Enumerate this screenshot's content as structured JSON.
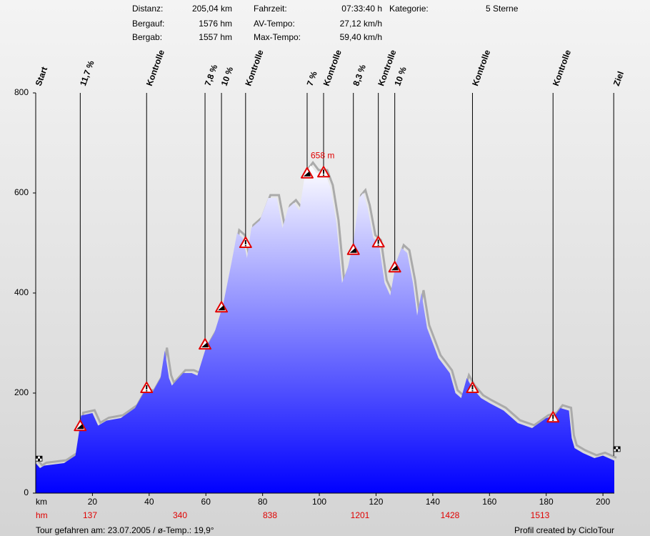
{
  "chart_data": {
    "type": "area",
    "stats": [
      {
        "label": "Distanz:",
        "value": "205,04 km"
      },
      {
        "label": "Bergauf:",
        "value": "1576 hm"
      },
      {
        "label": "Bergab:",
        "value": "1557 hm"
      },
      {
        "label": "Fahrzeit:",
        "value": "07:33:40 h"
      },
      {
        "label": "AV-Tempo:",
        "value": "27,12 km/h"
      },
      {
        "label": "Max-Tempo:",
        "value": "59,40 km/h"
      },
      {
        "label": "Kategorie:",
        "value": "5 Sterne"
      }
    ],
    "annotation": "658 m",
    "x_label": "km",
    "xlim": [
      0,
      204
    ],
    "xticks": [
      20,
      40,
      60,
      80,
      100,
      120,
      140,
      160,
      180,
      200
    ],
    "ylim": [
      0,
      800
    ],
    "yticks": [
      0,
      200,
      400,
      600,
      800
    ],
    "climb_label": "hm",
    "climb_values": [
      137,
      340,
      838,
      1201,
      1428,
      1513
    ],
    "series": [
      {
        "color": "#0000ff",
        "x": [
          0,
          1.5,
          3,
          10,
          14,
          15.5,
          16,
          20,
          22,
          25,
          30,
          35,
          38,
          41,
          44,
          45.5,
          47,
          48,
          52,
          55,
          57,
          60,
          63,
          66,
          69,
          71,
          73,
          74.5,
          76,
          79,
          82,
          85,
          87,
          89,
          91,
          93,
          95,
          97,
          99,
          102,
          104,
          106,
          108,
          110,
          112,
          114,
          115.5,
          117,
          119,
          121,
          123,
          125,
          127,
          129,
          131,
          133,
          134.5,
          136,
          138,
          140,
          142,
          144,
          146,
          148,
          150,
          152,
          154,
          157,
          160,
          165,
          170,
          175,
          180,
          183,
          185,
          188,
          189,
          190,
          193,
          197,
          200,
          204
        ],
        "values": [
          60,
          50,
          55,
          60,
          75,
          130,
          155,
          160,
          135,
          145,
          150,
          170,
          200,
          200,
          230,
          285,
          230,
          215,
          240,
          240,
          235,
          290,
          320,
          375,
          460,
          520,
          510,
          470,
          530,
          545,
          590,
          590,
          530,
          570,
          580,
          565,
          640,
          655,
          640,
          640,
          610,
          540,
          420,
          450,
          500,
          590,
          600,
          570,
          510,
          500,
          420,
          395,
          460,
          490,
          480,
          420,
          355,
          400,
          330,
          300,
          270,
          255,
          240,
          200,
          190,
          230,
          210,
          190,
          180,
          165,
          140,
          130,
          150,
          155,
          170,
          165,
          110,
          90,
          80,
          70,
          75,
          65
        ]
      }
    ],
    "markers": [
      {
        "label": "Start",
        "icon": "flag",
        "km": 0,
        "elevation": 64
      },
      {
        "label": "11,7 %",
        "icon": "climb",
        "km": 15.7,
        "elevation": 134
      },
      {
        "label": "Kontrolle",
        "icon": "warning",
        "km": 39.1,
        "elevation": 210
      },
      {
        "label": "7,8 %",
        "icon": "climb",
        "km": 59.7,
        "elevation": 297
      },
      {
        "label": "10 %",
        "icon": "climb",
        "km": 65.5,
        "elevation": 371
      },
      {
        "label": "Kontrolle",
        "icon": "warning",
        "km": 74,
        "elevation": 500
      },
      {
        "label": "7 %",
        "icon": "climb",
        "km": 95.7,
        "elevation": 639
      },
      {
        "label": "Kontrolle",
        "icon": "warning",
        "km": 101.5,
        "elevation": 641
      },
      {
        "label": "8,3 %",
        "icon": "climb",
        "km": 112,
        "elevation": 486
      },
      {
        "label": "Kontrolle",
        "icon": "warning",
        "km": 120.8,
        "elevation": 501
      },
      {
        "label": "10 %",
        "icon": "climb",
        "km": 126.6,
        "elevation": 451
      },
      {
        "label": "Kontrolle",
        "icon": "warning",
        "km": 154,
        "elevation": 210
      },
      {
        "label": "Kontrolle",
        "icon": "warning",
        "km": 182.4,
        "elevation": 151
      },
      {
        "label": "Ziel",
        "icon": "flag",
        "km": 203.8,
        "elevation": 83
      }
    ],
    "footer_left": "Tour gefahren am: 23.07.2005  /  ø-Temp.: 19,9°",
    "footer_right": "Profil created by CicloTour"
  }
}
